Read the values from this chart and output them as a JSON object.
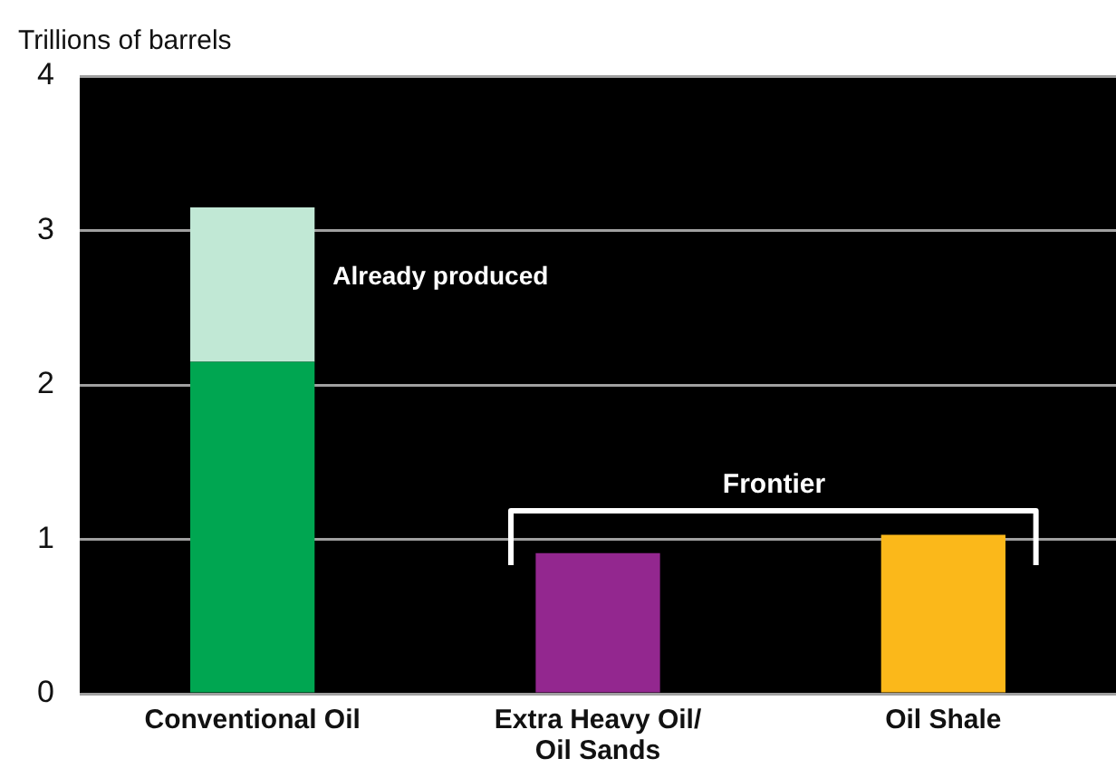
{
  "chart_data": {
    "type": "bar",
    "ylabel": "Trillions of barrels",
    "categories": [
      "Conventional Oil",
      "Extra Heavy Oil/\nOil Sands",
      "Oil Shale"
    ],
    "series": [
      {
        "colors": [
          "#00a651",
          "#93278f",
          "#fbb81a"
        ],
        "values": [
          2.15,
          0.91,
          1.03
        ]
      },
      {
        "name": "Already produced",
        "color": "#c1e8d5",
        "values": [
          1.0,
          null,
          null
        ]
      }
    ],
    "stacked": true,
    "ylim": [
      0,
      4
    ],
    "yticks": [
      0,
      1,
      2,
      3,
      4
    ],
    "grid": "y",
    "legend": false,
    "annotations": [
      "Frontier"
    ]
  }
}
